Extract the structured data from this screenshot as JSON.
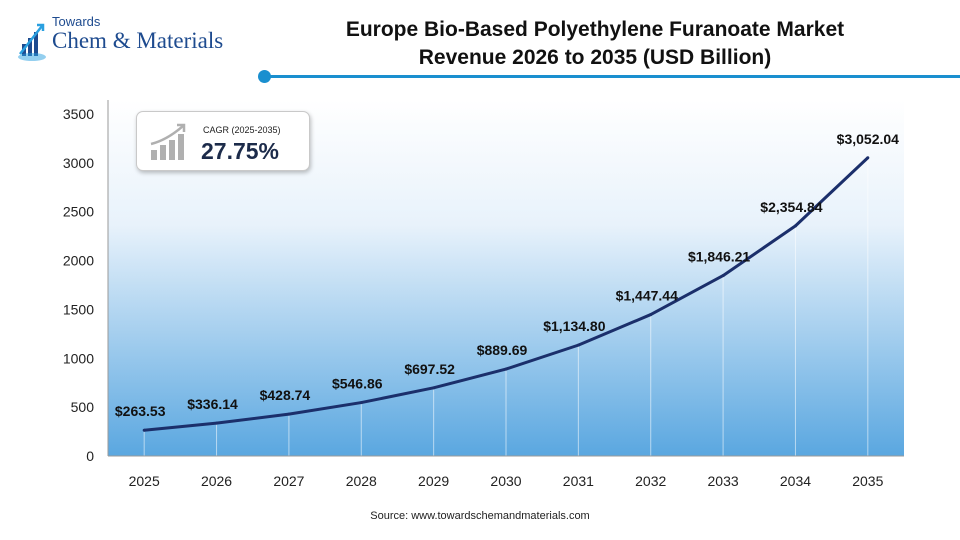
{
  "brand": {
    "line1": "Towards",
    "line2": "Chem & Materials"
  },
  "title_line1": "Europe Bio-Based Polyethylene Furanoate Market",
  "title_line2": "Revenue 2026 to 2035 (USD Billion)",
  "cagr": {
    "label": "CAGR (2025-2035)",
    "value": "27.75%"
  },
  "source": "Source:  www.towardschemandmaterials.com",
  "colors": {
    "accent": "#1a8fcf",
    "line": "#1b2f6b",
    "gradient_top": "#5aa7e0"
  },
  "chart_data": {
    "type": "area",
    "title": "Europe Bio-Based Polyethylene Furanoate Market Revenue 2026 to 2035 (USD Billion)",
    "categories": [
      "2025",
      "2026",
      "2027",
      "2028",
      "2029",
      "2030",
      "2031",
      "2032",
      "2033",
      "2034",
      "2035"
    ],
    "values": [
      263.53,
      336.14,
      428.74,
      546.86,
      697.52,
      889.69,
      1134.8,
      1447.44,
      1846.21,
      2354.84,
      3052.04
    ],
    "data_labels": [
      "$263.53",
      "$336.14",
      "$428.74",
      "$546.86",
      "$697.52",
      "$889.69",
      "$1,134.80",
      "$1,447.44",
      "$1,846.21",
      "$2,354.84",
      "$3,052.04"
    ],
    "y_ticks": [
      "0",
      "500",
      "1000",
      "1500",
      "2000",
      "2500",
      "3000",
      "3500"
    ],
    "ylim": [
      0,
      3500
    ],
    "xlabel": "",
    "ylabel": "",
    "grid": "vertical lines",
    "legend": "none"
  }
}
